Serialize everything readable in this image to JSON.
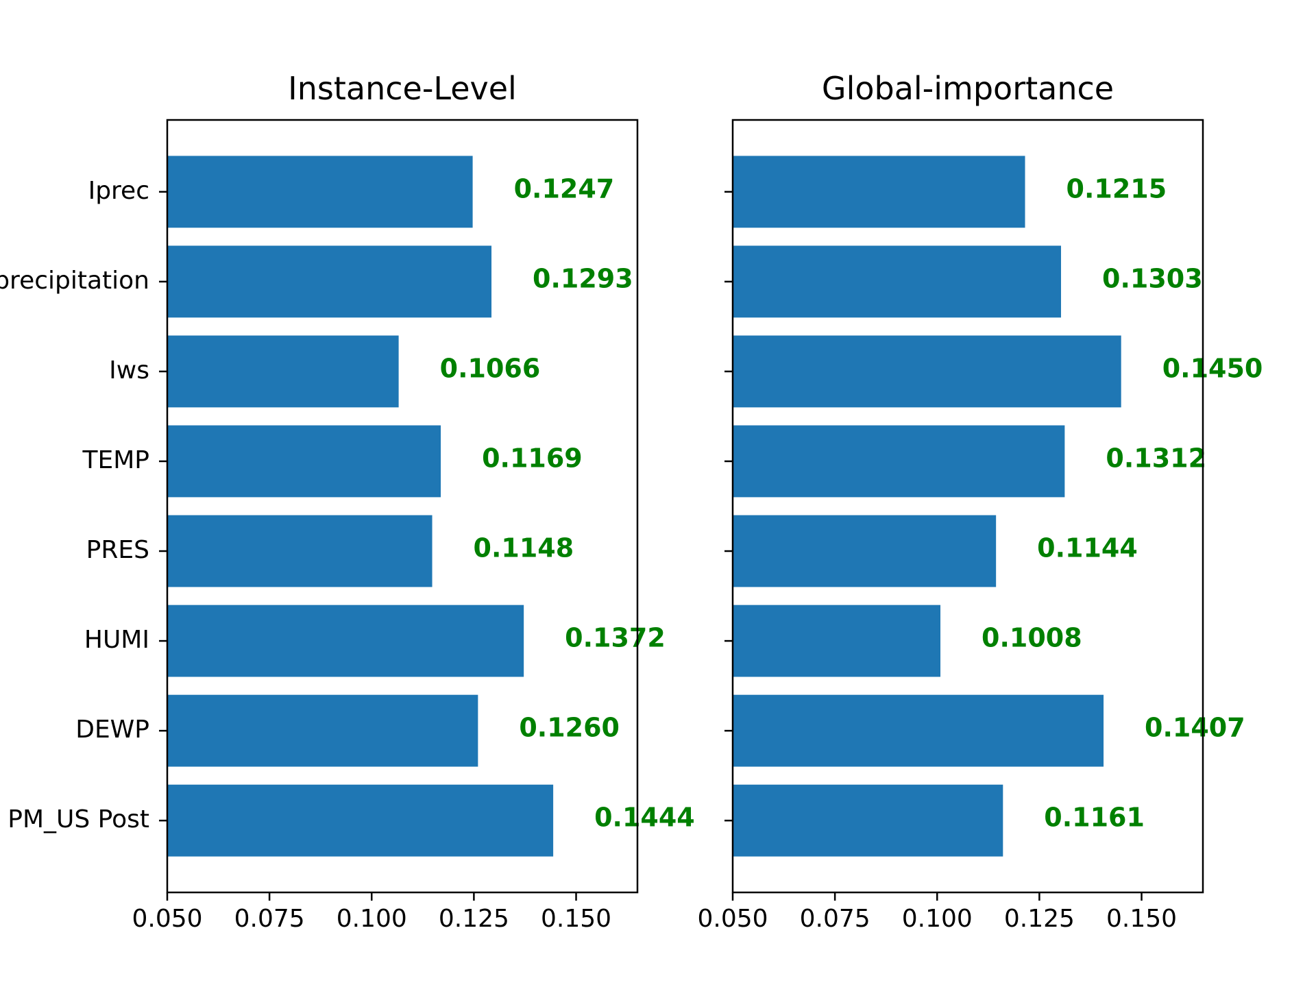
{
  "chart_data": [
    {
      "type": "bar",
      "orientation": "horizontal",
      "title": "Instance-Level",
      "categories": [
        "Iprec",
        "precipitation",
        "Iws",
        "TEMP",
        "PRES",
        "HUMI",
        "DEWP",
        "PM_US Post"
      ],
      "values": [
        0.1247,
        0.1293,
        0.1066,
        0.1169,
        0.1148,
        0.1372,
        0.126,
        0.1444
      ],
      "data_labels": [
        "0.1247",
        "0.1293",
        "0.1066",
        "0.1169",
        "0.1148",
        "0.1372",
        "0.1260",
        "0.1444"
      ],
      "xlim": [
        0.05,
        0.165
      ],
      "xticks": [
        "0.050",
        "0.075",
        "0.100",
        "0.125",
        "0.150"
      ],
      "show_category_labels": true,
      "bar_color": "#1f77b4",
      "label_color": "#008000",
      "grid": false
    },
    {
      "type": "bar",
      "orientation": "horizontal",
      "title": "Global-importance",
      "categories": [
        "Iprec",
        "precipitation",
        "Iws",
        "TEMP",
        "PRES",
        "HUMI",
        "DEWP",
        "PM_US Post"
      ],
      "values": [
        0.1215,
        0.1303,
        0.145,
        0.1312,
        0.1144,
        0.1008,
        0.1407,
        0.1161
      ],
      "data_labels": [
        "0.1215",
        "0.1303",
        "0.1450",
        "0.1312",
        "0.1144",
        "0.1008",
        "0.1407",
        "0.1161"
      ],
      "xlim": [
        0.05,
        0.165
      ],
      "xticks": [
        "0.050",
        "0.075",
        "0.100",
        "0.125",
        "0.150"
      ],
      "show_category_labels": false,
      "bar_color": "#1f77b4",
      "label_color": "#008000",
      "grid": false
    }
  ]
}
